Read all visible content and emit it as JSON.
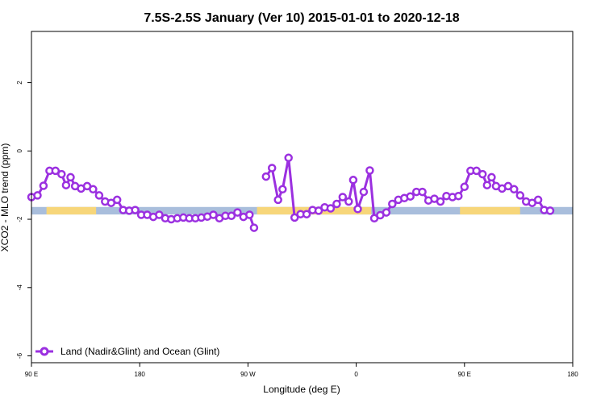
{
  "chart_data": {
    "type": "line",
    "title": "7.5S-2.5S January (Ver 10)   2015-01-01 to 2020-12-18",
    "xlabel": "Longitude (deg E)",
    "ylabel": "XCO2 - MLO trend (ppm)",
    "xlim": [
      90,
      450
    ],
    "ylim": [
      -6.2,
      3.5
    ],
    "x_ticks": [
      {
        "value": 90,
        "label": "90 E"
      },
      {
        "value": 162,
        "label": "180"
      },
      {
        "value": 234,
        "label": "90 W"
      },
      {
        "value": 306,
        "label": "0"
      },
      {
        "value": 378,
        "label": "90 E"
      },
      {
        "value": 450,
        "label": "180"
      }
    ],
    "y_ticks": [
      {
        "value": 2,
        "label": "2"
      },
      {
        "value": 0,
        "label": "0"
      },
      {
        "value": -2,
        "label": "-2"
      },
      {
        "value": -4,
        "label": "-4"
      },
      {
        "value": -6,
        "label": "-6"
      }
    ],
    "legend": {
      "label": "Land (Nadir&Glint) and Ocean (Glint)",
      "position": "bottom-left"
    },
    "series": [
      {
        "name": "Land (Nadir&Glint) and Ocean (Glint)",
        "color": "#9b30e0",
        "segments": [
          [
            [
              90,
              -1.35
            ],
            [
              94,
              -1.3
            ],
            [
              98,
              -1.02
            ],
            [
              102,
              -0.58
            ],
            [
              106,
              -0.58
            ],
            [
              110,
              -0.68
            ],
            [
              113,
              -1.0
            ],
            [
              116,
              -0.77
            ],
            [
              119,
              -1.03
            ],
            [
              123,
              -1.1
            ],
            [
              127,
              -1.03
            ],
            [
              131,
              -1.12
            ],
            [
              135,
              -1.3
            ],
            [
              139,
              -1.48
            ],
            [
              143,
              -1.52
            ],
            [
              147,
              -1.43
            ],
            [
              151,
              -1.73
            ],
            [
              155,
              -1.75
            ],
            [
              159,
              -1.73
            ],
            [
              163,
              -1.87
            ],
            [
              167,
              -1.87
            ],
            [
              171,
              -1.93
            ],
            [
              175,
              -1.87
            ],
            [
              179,
              -1.97
            ],
            [
              183,
              -2.0
            ],
            [
              187,
              -1.97
            ],
            [
              191,
              -1.95
            ],
            [
              195,
              -1.97
            ],
            [
              199,
              -1.97
            ],
            [
              203,
              -1.95
            ],
            [
              207,
              -1.92
            ],
            [
              211,
              -1.87
            ],
            [
              215,
              -1.97
            ],
            [
              219,
              -1.9
            ],
            [
              223,
              -1.9
            ],
            [
              227,
              -1.8
            ],
            [
              231,
              -1.93
            ],
            [
              235,
              -1.87
            ],
            [
              238,
              -2.25
            ]
          ],
          [
            [
              246,
              -0.75
            ],
            [
              250,
              -0.5
            ],
            [
              254,
              -1.43
            ],
            [
              257,
              -1.12
            ],
            [
              261,
              -0.2
            ],
            [
              265,
              -1.95
            ],
            [
              269,
              -1.85
            ],
            [
              273,
              -1.85
            ],
            [
              277,
              -1.73
            ],
            [
              281,
              -1.75
            ],
            [
              285,
              -1.65
            ],
            [
              289,
              -1.68
            ],
            [
              293,
              -1.55
            ],
            [
              297,
              -1.35
            ],
            [
              301,
              -1.48
            ],
            [
              304,
              -0.85
            ],
            [
              307,
              -1.7
            ],
            [
              311,
              -1.2
            ],
            [
              315,
              -0.57
            ],
            [
              318,
              -1.97
            ],
            [
              322,
              -1.88
            ],
            [
              326,
              -1.8
            ],
            [
              330,
              -1.55
            ],
            [
              334,
              -1.43
            ],
            [
              338,
              -1.38
            ],
            [
              342,
              -1.33
            ],
            [
              346,
              -1.2
            ],
            [
              350,
              -1.2
            ],
            [
              354,
              -1.45
            ],
            [
              358,
              -1.4
            ],
            [
              362,
              -1.48
            ],
            [
              366,
              -1.32
            ],
            [
              370,
              -1.35
            ],
            [
              374,
              -1.32
            ],
            [
              378,
              -1.05
            ],
            [
              382,
              -0.58
            ],
            [
              386,
              -0.58
            ],
            [
              390,
              -0.68
            ],
            [
              393,
              -1.0
            ],
            [
              396,
              -0.77
            ],
            [
              399,
              -1.03
            ],
            [
              403,
              -1.1
            ],
            [
              407,
              -1.03
            ],
            [
              411,
              -1.12
            ],
            [
              415,
              -1.3
            ],
            [
              419,
              -1.48
            ],
            [
              423,
              -1.52
            ],
            [
              427,
              -1.43
            ],
            [
              431,
              -1.73
            ],
            [
              435,
              -1.75
            ]
          ]
        ]
      }
    ],
    "background_band": {
      "y_center": -1.75,
      "half_height": 0.11,
      "ocean_color": "#a9bedc",
      "land_color": "#f7d67a",
      "land_ranges": [
        [
          100,
          133
        ],
        [
          240,
          316
        ],
        [
          375,
          415
        ]
      ]
    },
    "grid": false
  }
}
